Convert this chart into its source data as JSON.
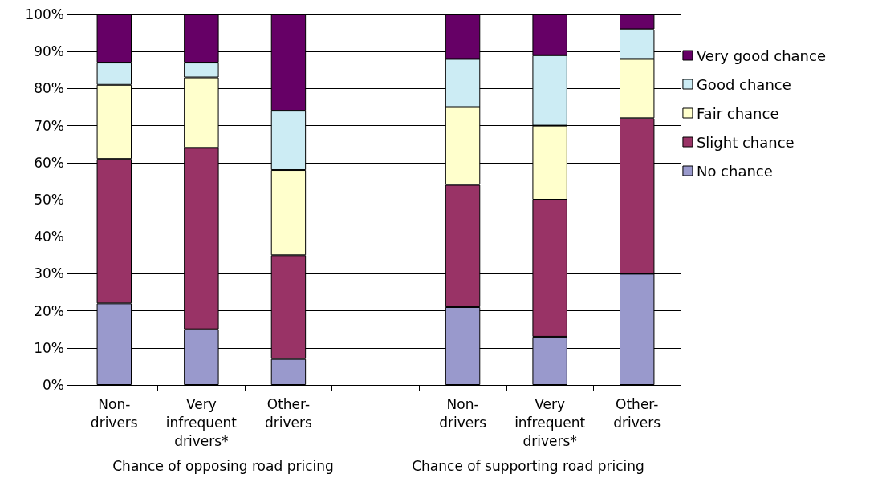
{
  "chart_data": {
    "type": "bar",
    "stacked": true,
    "categories": [
      "Non-drivers",
      "Very infrequent drivers*",
      "Other-drivers",
      null,
      "Non-drivers",
      "Very infrequent drivers*",
      "Other-drivers"
    ],
    "series": [
      {
        "name": "No chance",
        "color": "#9999cc",
        "values": [
          22,
          15,
          7,
          null,
          21,
          13,
          30
        ]
      },
      {
        "name": "Slight chance",
        "color": "#993366",
        "values": [
          39,
          49,
          28,
          null,
          33,
          37,
          42
        ]
      },
      {
        "name": "Fair chance",
        "color": "#ffffcc",
        "values": [
          20,
          19,
          23,
          null,
          21,
          20,
          16
        ]
      },
      {
        "name": "Good chance",
        "color": "#ccecf4",
        "values": [
          6,
          4,
          16,
          null,
          13,
          19,
          8
        ]
      },
      {
        "name": "Very good chance",
        "color": "#660066",
        "values": [
          13,
          13,
          26,
          null,
          12,
          11,
          4
        ]
      }
    ],
    "ylim": [
      0,
      100
    ],
    "yticks": [
      {
        "value": 0,
        "label": "0%"
      },
      {
        "value": 10,
        "label": "10%"
      },
      {
        "value": 20,
        "label": "20%"
      },
      {
        "value": 30,
        "label": "30%"
      },
      {
        "value": 40,
        "label": "40%"
      },
      {
        "value": 50,
        "label": "50%"
      },
      {
        "value": 60,
        "label": "60%"
      },
      {
        "value": 70,
        "label": "70%"
      },
      {
        "value": 80,
        "label": "80%"
      },
      {
        "value": 90,
        "label": "90%"
      },
      {
        "value": 100,
        "label": "100%"
      }
    ],
    "grid": "y",
    "legend": "right",
    "annotations": [
      "Chance of opposing road pricing",
      "Chance of supporting road pricing"
    ]
  }
}
